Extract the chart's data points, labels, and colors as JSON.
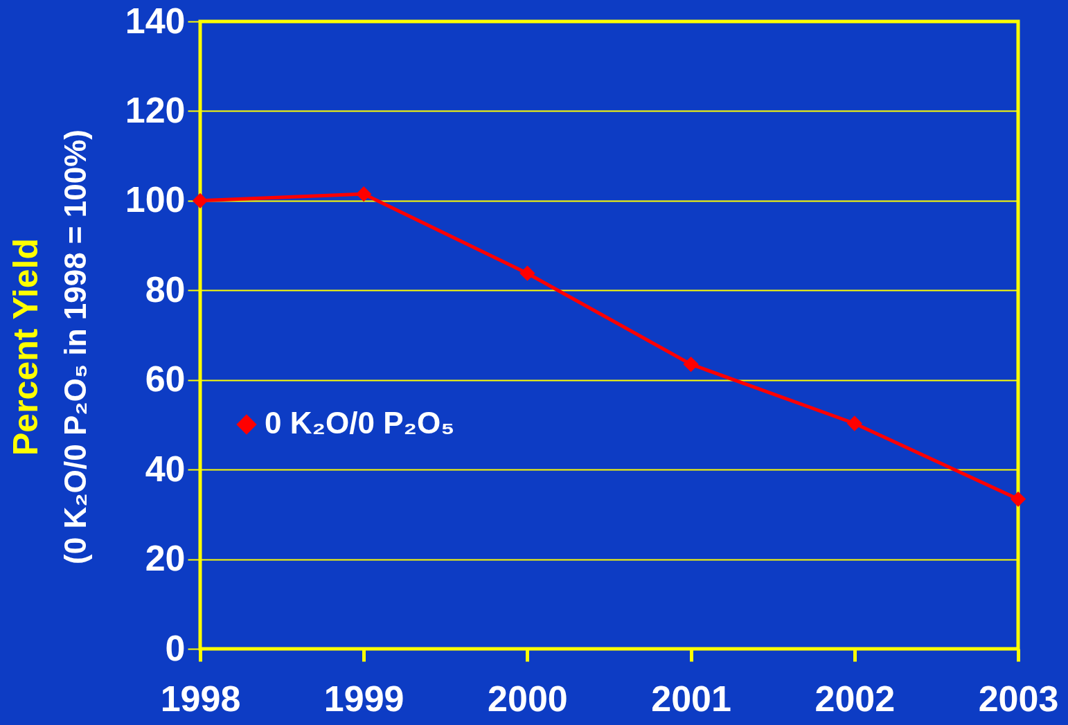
{
  "chart_data": {
    "type": "line",
    "ylabel": "Percent Yield\n(0 K₂O/0 P₂O₅ in 1998 = 100%)",
    "categories": [
      "1998",
      "1999",
      "2000",
      "2001",
      "2002",
      "2003"
    ],
    "series": [
      {
        "name": "0 K₂O/0 P₂O₅",
        "color": "#ff0000",
        "values": [
          100,
          101.5,
          83.8,
          63.5,
          50.3,
          33.4
        ]
      }
    ],
    "ylim": [
      0,
      140
    ],
    "yticks": [
      0,
      20,
      40,
      60,
      80,
      100,
      120,
      140
    ],
    "grid": "y",
    "legend": "left",
    "marker": "diamond",
    "line_style": "solid"
  }
}
